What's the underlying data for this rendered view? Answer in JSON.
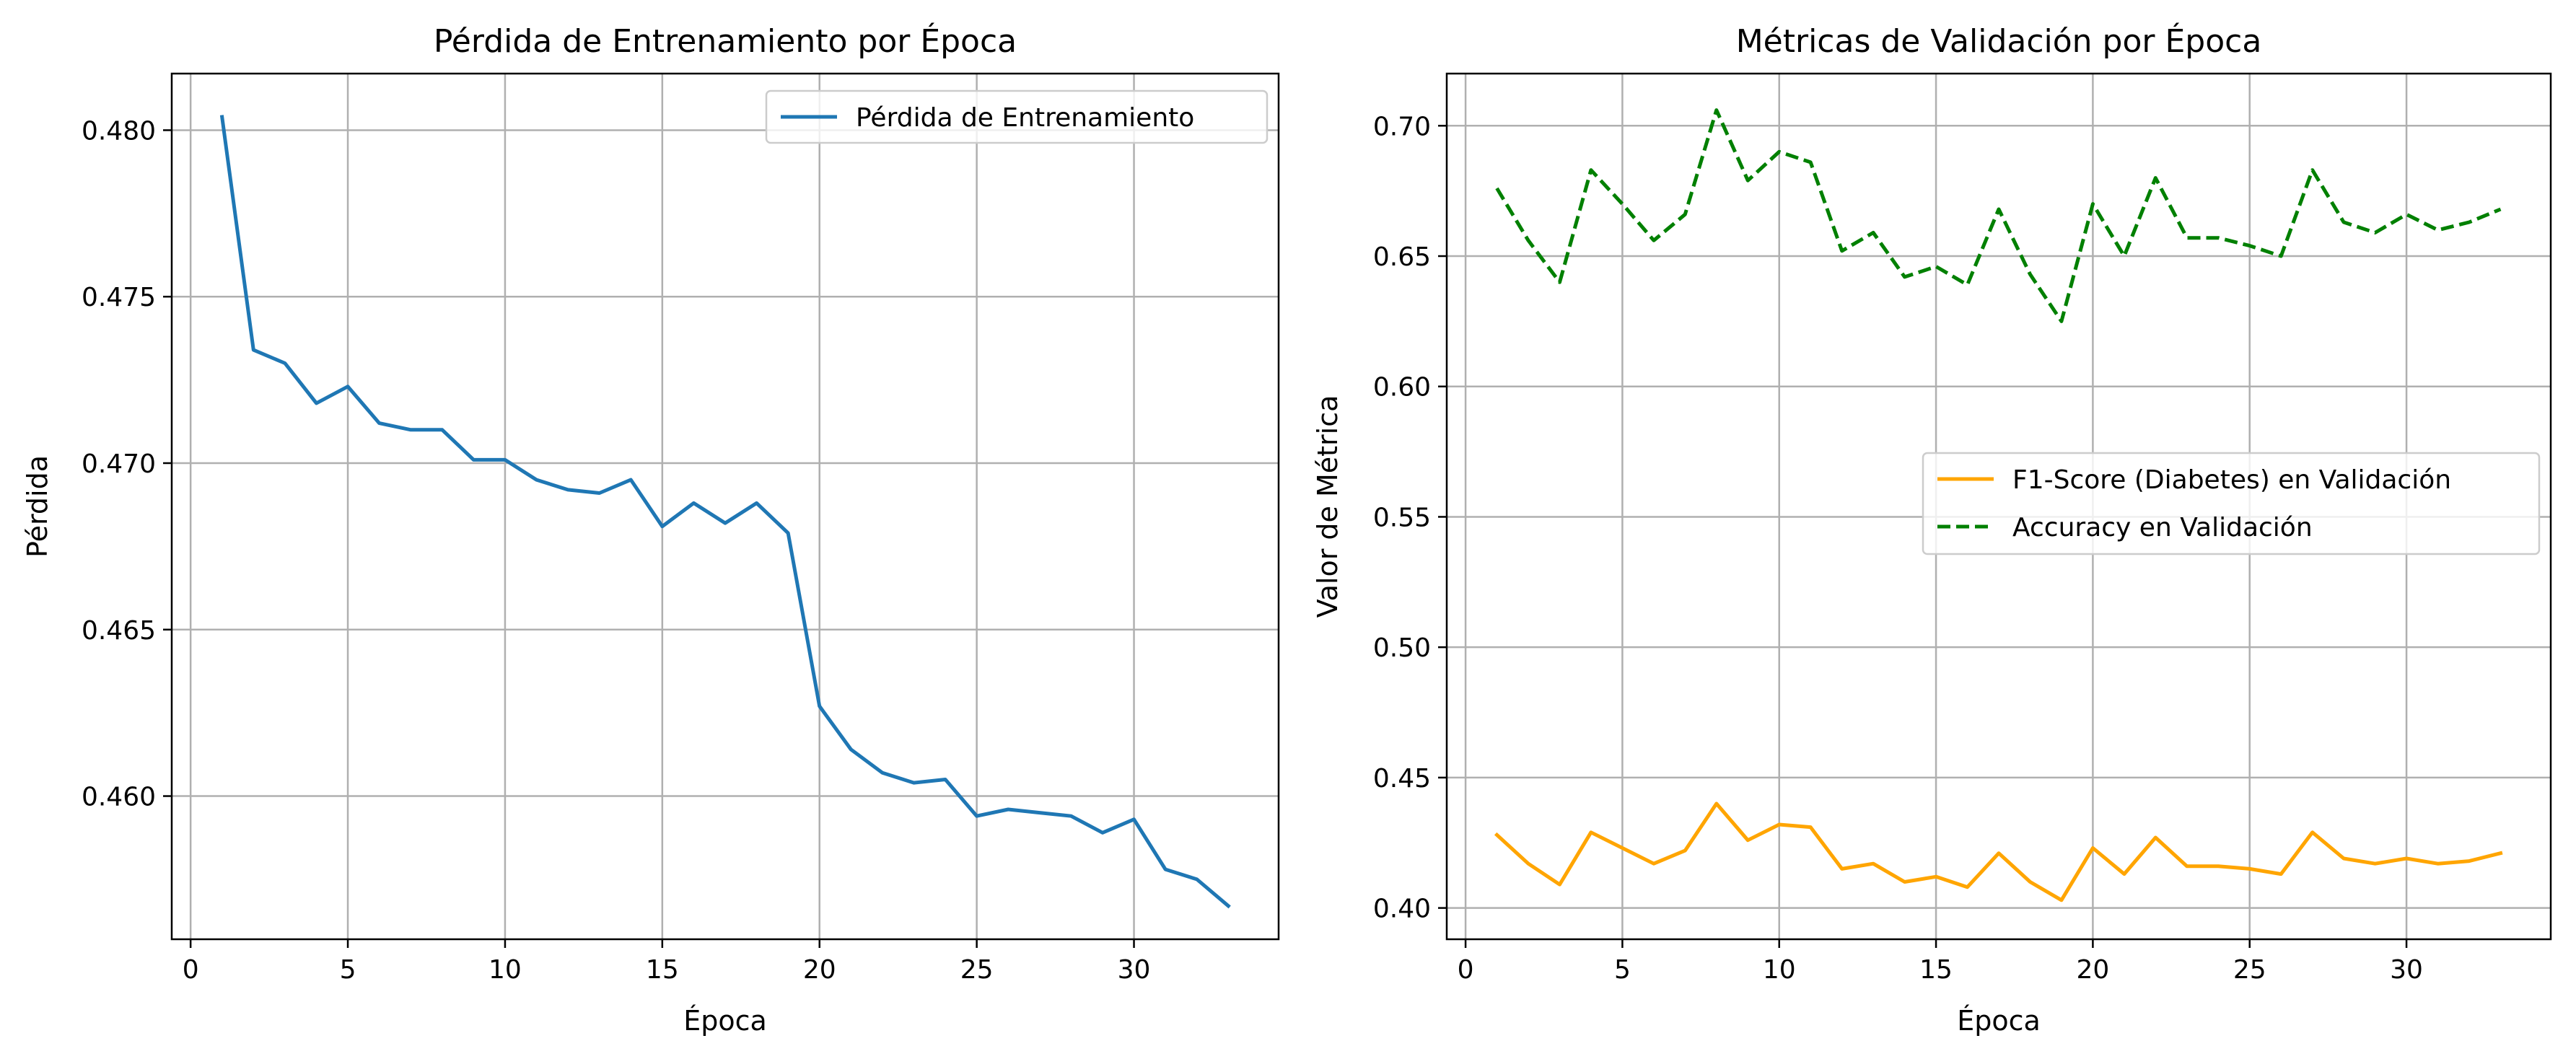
{
  "chart_data": [
    {
      "type": "line",
      "title": "Pérdida de Entrenamiento por Época",
      "xlabel": "Época",
      "ylabel": "Pérdida",
      "xlim": [
        -0.6,
        34.6
      ],
      "ylim": [
        0.4557,
        0.4817
      ],
      "xticks": [
        0,
        5,
        10,
        15,
        20,
        25,
        30
      ],
      "yticks": [
        0.46,
        0.465,
        0.47,
        0.475,
        0.48
      ],
      "ytick_labels": [
        "0.460",
        "0.465",
        "0.470",
        "0.475",
        "0.480"
      ],
      "grid": true,
      "legend_position": "top-right",
      "x": [
        1,
        2,
        3,
        4,
        5,
        6,
        7,
        8,
        9,
        10,
        11,
        12,
        13,
        14,
        15,
        16,
        17,
        18,
        19,
        20,
        21,
        22,
        23,
        24,
        25,
        26,
        27,
        28,
        29,
        30,
        31,
        32,
        33
      ],
      "series": [
        {
          "name": "Pérdida de Entrenamiento",
          "color": "#1f77b4",
          "style": "solid",
          "values": [
            0.4804,
            0.4734,
            0.473,
            0.4718,
            0.4723,
            0.4712,
            0.471,
            0.471,
            0.4701,
            0.4701,
            0.4695,
            0.4692,
            0.4691,
            0.4695,
            0.4681,
            0.4688,
            0.4682,
            0.4688,
            0.4679,
            0.4627,
            0.4614,
            0.4607,
            0.4604,
            0.4605,
            0.4594,
            0.4596,
            0.4595,
            0.4594,
            0.4589,
            0.4593,
            0.4578,
            0.4575,
            0.4567
          ]
        }
      ]
    },
    {
      "type": "line",
      "title": "Métricas de Validación por Época",
      "xlabel": "Época",
      "ylabel": "Valor de Métrica",
      "xlim": [
        -0.6,
        34.6
      ],
      "ylim": [
        0.388,
        0.72
      ],
      "xticks": [
        0,
        5,
        10,
        15,
        20,
        25,
        30
      ],
      "yticks": [
        0.4,
        0.45,
        0.5,
        0.55,
        0.6,
        0.65,
        0.7
      ],
      "ytick_labels": [
        "0.40",
        "0.45",
        "0.50",
        "0.55",
        "0.60",
        "0.65",
        "0.70"
      ],
      "grid": true,
      "legend_position": "center-right",
      "x": [
        1,
        2,
        3,
        4,
        5,
        6,
        7,
        8,
        9,
        10,
        11,
        12,
        13,
        14,
        15,
        16,
        17,
        18,
        19,
        20,
        21,
        22,
        23,
        24,
        25,
        26,
        27,
        28,
        29,
        30,
        31,
        32,
        33
      ],
      "series": [
        {
          "name": "F1-Score (Diabetes) en Validación",
          "color": "#ffa500",
          "style": "solid",
          "values": [
            0.428,
            0.417,
            0.409,
            0.429,
            0.423,
            0.417,
            0.422,
            0.44,
            0.426,
            0.432,
            0.431,
            0.415,
            0.417,
            0.41,
            0.412,
            0.408,
            0.421,
            0.41,
            0.403,
            0.423,
            0.413,
            0.427,
            0.416,
            0.416,
            0.415,
            0.413,
            0.429,
            0.419,
            0.417,
            0.419,
            0.417,
            0.418,
            0.421
          ]
        },
        {
          "name": "Accuracy en Validación",
          "color": "#008000",
          "style": "dashed",
          "values": [
            0.676,
            0.656,
            0.64,
            0.683,
            0.67,
            0.656,
            0.666,
            0.706,
            0.679,
            0.69,
            0.686,
            0.652,
            0.659,
            0.642,
            0.646,
            0.639,
            0.668,
            0.643,
            0.625,
            0.67,
            0.65,
            0.68,
            0.657,
            0.657,
            0.654,
            0.65,
            0.683,
            0.663,
            0.659,
            0.666,
            0.66,
            0.663,
            0.668
          ]
        }
      ]
    }
  ]
}
